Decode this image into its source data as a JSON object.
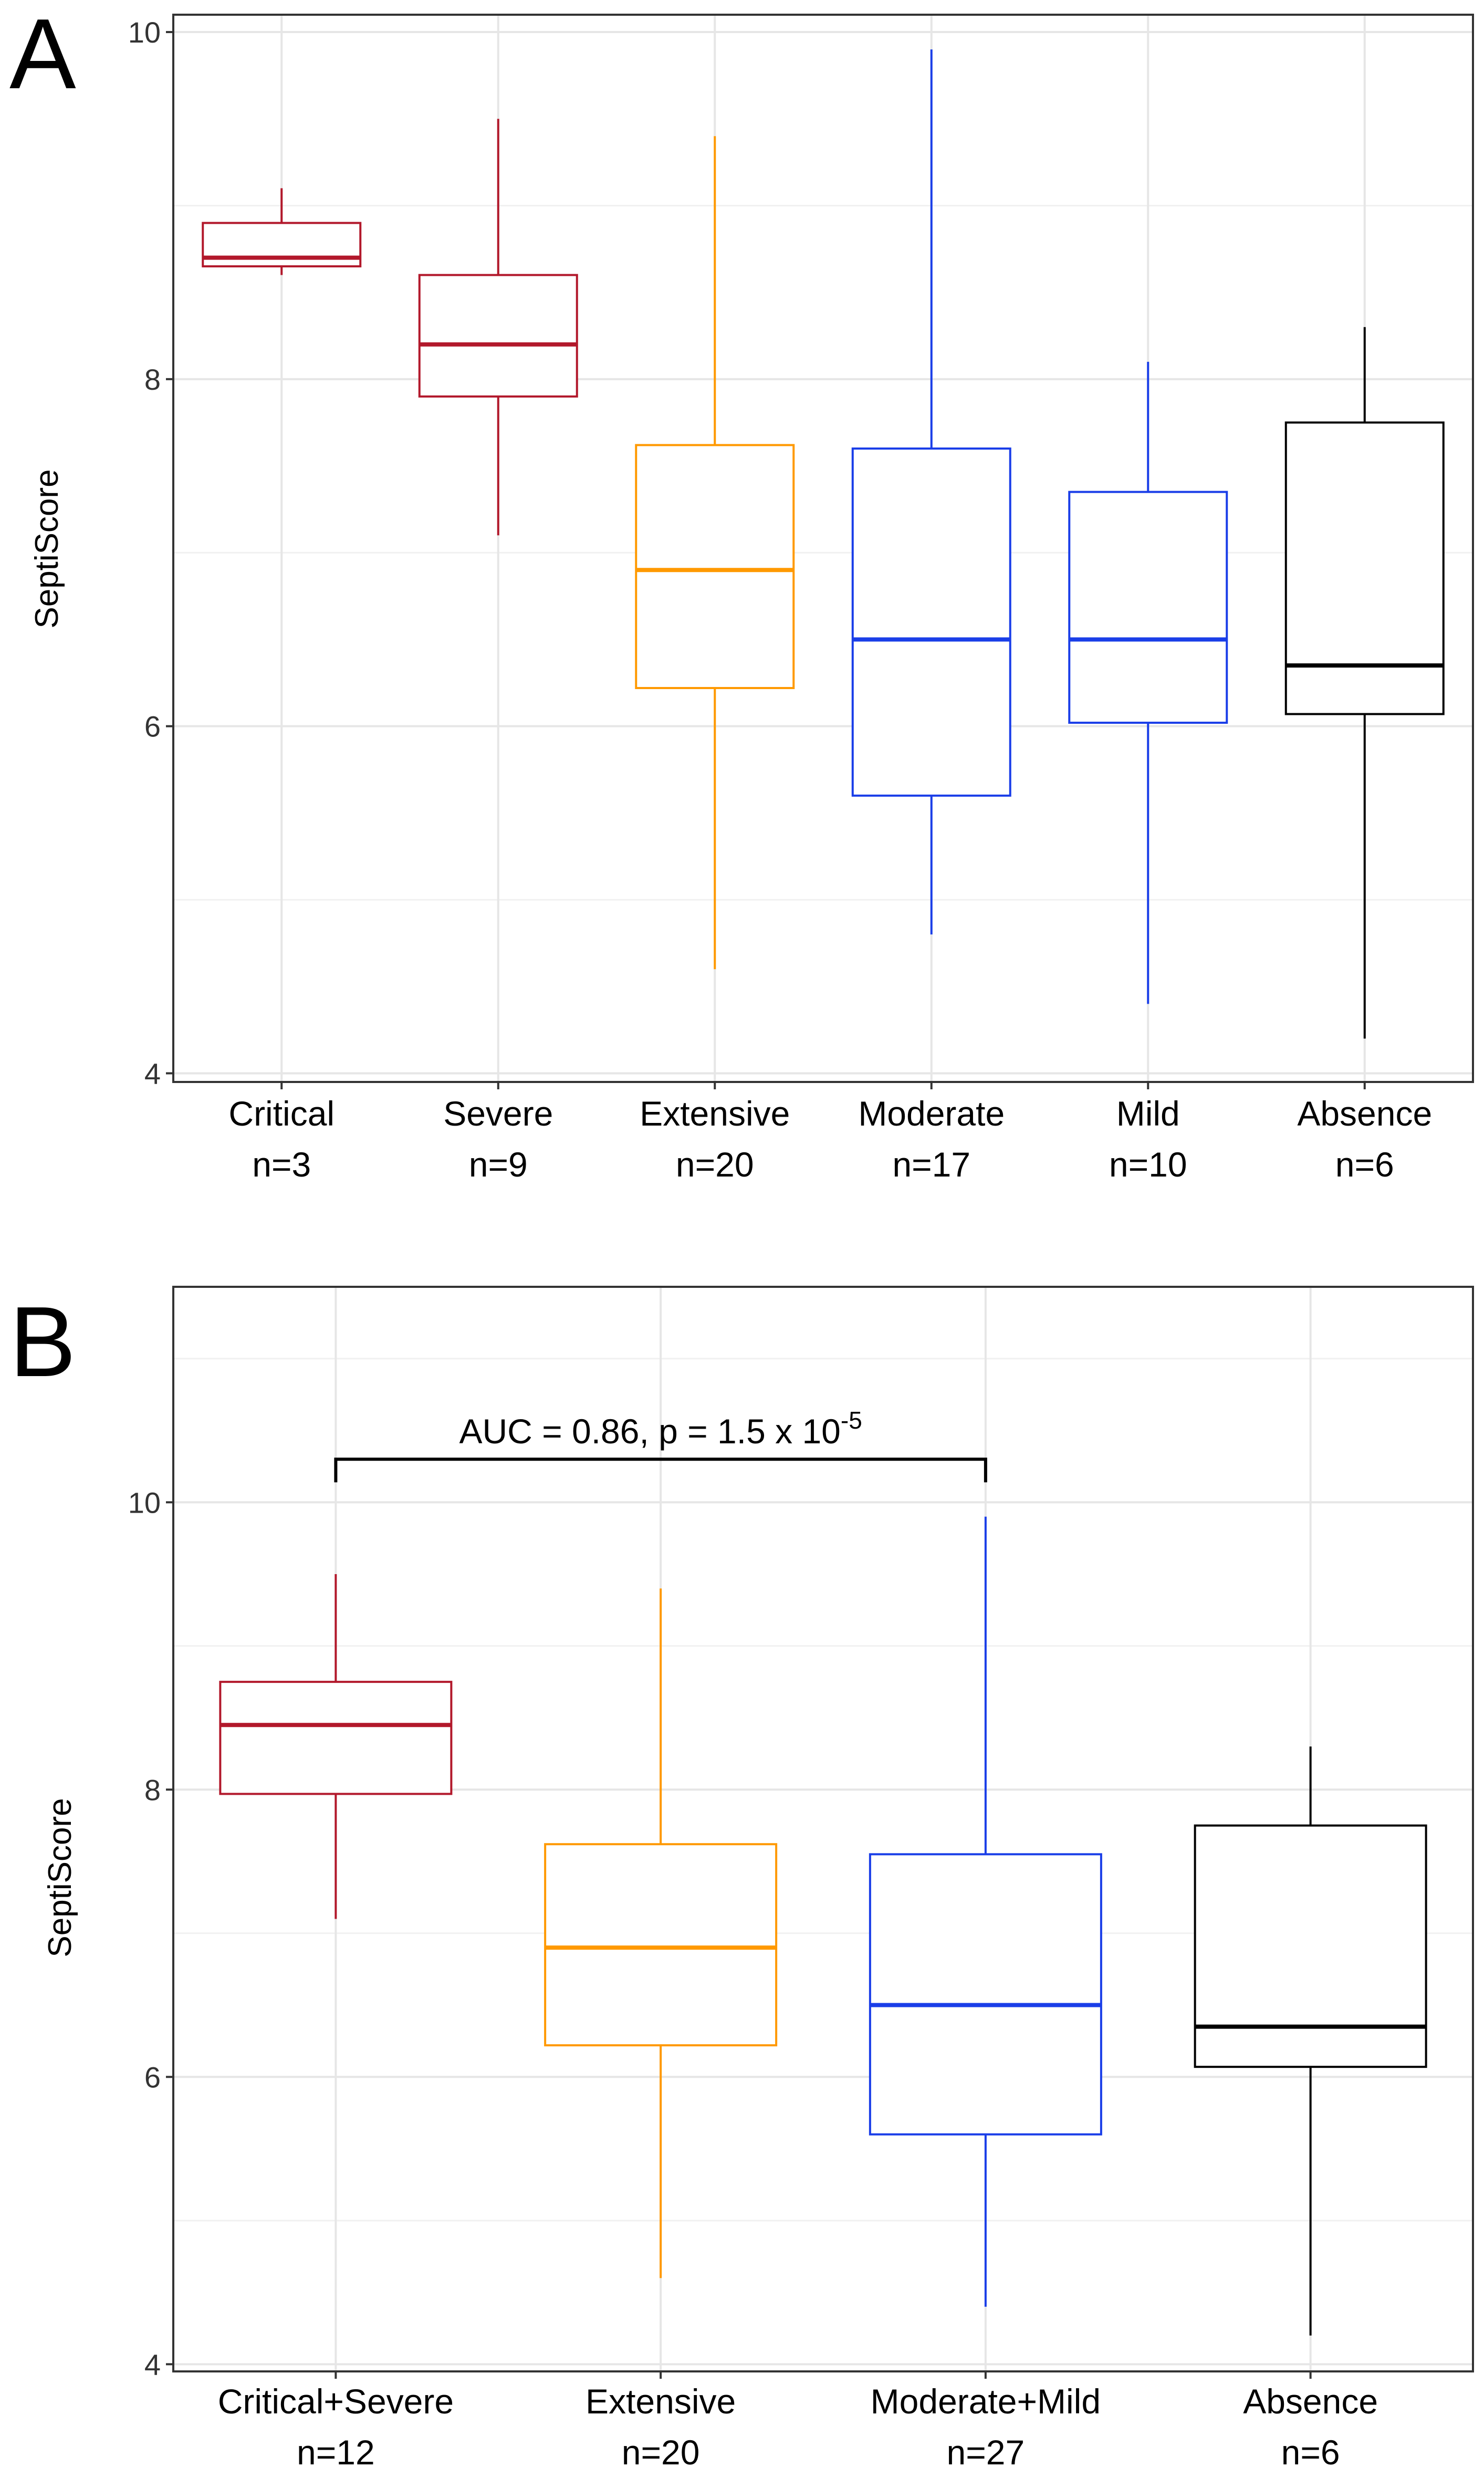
{
  "chart_data": [
    {
      "panel": "A",
      "type": "boxplot",
      "ylabel": "SeptiScore",
      "ylim": [
        3.95,
        10.1
      ],
      "yticks": [
        "4",
        "6",
        "8",
        "10"
      ],
      "grid": true,
      "groups": [
        {
          "name": "Critical",
          "n": "n=3",
          "color": "#b2182b",
          "whisker_low": 8.6,
          "q1": 8.65,
          "median": 8.7,
          "q3": 8.9,
          "whisker_high": 9.1
        },
        {
          "name": "Severe",
          "n": "n=9",
          "color": "#b2182b",
          "whisker_low": 7.1,
          "q1": 7.9,
          "median": 8.2,
          "q3": 8.6,
          "whisker_high": 9.5
        },
        {
          "name": "Extensive",
          "n": "n=20",
          "color": "#ff9900",
          "whisker_low": 4.6,
          "q1": 6.22,
          "median": 6.9,
          "q3": 7.62,
          "whisker_high": 9.4
        },
        {
          "name": "Moderate",
          "n": "n=17",
          "color": "#1a3ee8",
          "whisker_low": 4.8,
          "q1": 5.6,
          "median": 6.5,
          "q3": 7.6,
          "whisker_high": 9.9
        },
        {
          "name": "Mild",
          "n": "n=10",
          "color": "#1a3ee8",
          "whisker_low": 4.4,
          "q1": 6.02,
          "median": 6.5,
          "q3": 7.35,
          "whisker_high": 8.1
        },
        {
          "name": "Absence",
          "n": "n=6",
          "color": "#000000",
          "whisker_low": 4.2,
          "q1": 6.07,
          "median": 6.35,
          "q3": 7.75,
          "whisker_high": 8.3
        }
      ]
    },
    {
      "panel": "B",
      "type": "boxplot",
      "ylabel": "SeptiScore",
      "ylim": [
        3.95,
        11.5
      ],
      "yticks": [
        "4",
        "6",
        "8",
        "10"
      ],
      "grid": true,
      "annotation": {
        "text": "AUC = 0.86, p = 1.5 x 10",
        "superscript": "-5",
        "from_group": 0,
        "to_group": 2,
        "y_value": 10.3
      },
      "groups": [
        {
          "name": "Critical+Severe",
          "n": "n=12",
          "color": "#b2182b",
          "whisker_low": 7.1,
          "q1": 7.97,
          "median": 8.45,
          "q3": 8.75,
          "whisker_high": 9.5
        },
        {
          "name": "Extensive",
          "n": "n=20",
          "color": "#ff9900",
          "whisker_low": 4.6,
          "q1": 6.22,
          "median": 6.9,
          "q3": 7.62,
          "whisker_high": 9.4
        },
        {
          "name": "Moderate+Mild",
          "n": "n=27",
          "color": "#1a3ee8",
          "whisker_low": 4.4,
          "q1": 5.6,
          "median": 6.5,
          "q3": 7.55,
          "whisker_high": 9.9
        },
        {
          "name": "Absence",
          "n": "n=6",
          "color": "#000000",
          "whisker_low": 4.2,
          "q1": 6.07,
          "median": 6.35,
          "q3": 7.75,
          "whisker_high": 8.3
        }
      ]
    }
  ]
}
